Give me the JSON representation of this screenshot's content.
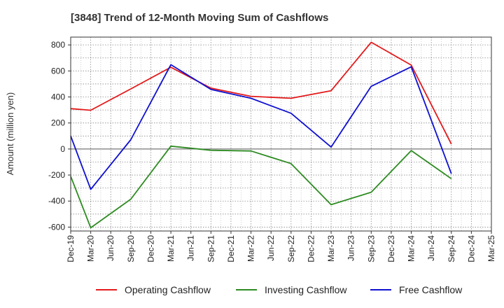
{
  "chart_data": {
    "type": "line",
    "title": "[3848]  Trend of 12-Month Moving Sum of Cashflows",
    "xlabel": "",
    "ylabel": "Amount (million yen)",
    "categories": [
      "Dec-19",
      "Mar-20",
      "Jun-20",
      "Sep-20",
      "Dec-20",
      "Mar-21",
      "Jun-21",
      "Sep-21",
      "Dec-21",
      "Mar-22",
      "Jun-22",
      "Sep-22",
      "Dec-22",
      "Mar-23",
      "Jun-23",
      "Sep-23",
      "Dec-23",
      "Mar-24",
      "Jun-24",
      "Sep-24",
      "Dec-24",
      "Mar-25"
    ],
    "ylim": [
      -630,
      860
    ],
    "yticks": [
      -600,
      -400,
      -200,
      0,
      200,
      400,
      600,
      800
    ],
    "grid": true,
    "legend_position": "bottom",
    "series": [
      {
        "name": "Operating Cashflow",
        "color": "#e31a1c",
        "points": [
          [
            "Dec-19",
            310
          ],
          [
            "Mar-20",
            298
          ],
          [
            "Sep-20",
            462
          ],
          [
            "Mar-21",
            628
          ],
          [
            "Sep-21",
            468
          ],
          [
            "Mar-22",
            405
          ],
          [
            "Sep-22",
            390
          ],
          [
            "Mar-23",
            448
          ],
          [
            "Sep-23",
            820
          ],
          [
            "Mar-24",
            645
          ],
          [
            "Sep-24",
            38
          ]
        ]
      },
      {
        "name": "Investing Cashflow",
        "color": "#2e8b22",
        "points": [
          [
            "Dec-19",
            -210
          ],
          [
            "Mar-20",
            -605
          ],
          [
            "Sep-20",
            -385
          ],
          [
            "Mar-21",
            22
          ],
          [
            "Sep-21",
            -10
          ],
          [
            "Mar-22",
            -15
          ],
          [
            "Sep-22",
            -112
          ],
          [
            "Mar-23",
            -428
          ],
          [
            "Sep-23",
            -332
          ],
          [
            "Mar-24",
            -12
          ],
          [
            "Sep-24",
            -228
          ]
        ]
      },
      {
        "name": "Free Cashflow",
        "color": "#0f10d0",
        "points": [
          [
            "Dec-19",
            100
          ],
          [
            "Mar-20",
            -310
          ],
          [
            "Sep-20",
            72
          ],
          [
            "Mar-21",
            648
          ],
          [
            "Sep-21",
            458
          ],
          [
            "Mar-22",
            390
          ],
          [
            "Sep-22",
            275
          ],
          [
            "Mar-23",
            15
          ],
          [
            "Sep-23",
            482
          ],
          [
            "Mar-24",
            632
          ],
          [
            "Sep-24",
            -190
          ]
        ]
      }
    ]
  }
}
